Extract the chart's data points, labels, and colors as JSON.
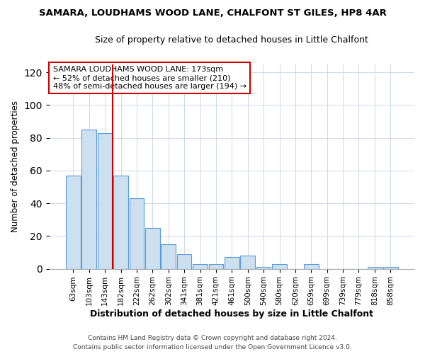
{
  "title": "SAMARA, LOUDHAMS WOOD LANE, CHALFONT ST GILES, HP8 4AR",
  "subtitle": "Size of property relative to detached houses in Little Chalfont",
  "xlabel": "Distribution of detached houses by size in Little Chalfont",
  "ylabel": "Number of detached properties",
  "footer": "Contains HM Land Registry data © Crown copyright and database right 2024.\nContains public sector information licensed under the Open Government Licence v3.0.",
  "bar_labels": [
    "63sqm",
    "103sqm",
    "143sqm",
    "182sqm",
    "222sqm",
    "262sqm",
    "302sqm",
    "341sqm",
    "381sqm",
    "421sqm",
    "461sqm",
    "500sqm",
    "540sqm",
    "580sqm",
    "620sqm",
    "659sqm",
    "699sqm",
    "739sqm",
    "779sqm",
    "818sqm",
    "858sqm"
  ],
  "bar_values": [
    57,
    85,
    83,
    57,
    43,
    25,
    15,
    9,
    3,
    3,
    7,
    8,
    1,
    3,
    0,
    3,
    0,
    0,
    0,
    1,
    1
  ],
  "bar_color": "#cce0f0",
  "bar_edge_color": "#5b9bd5",
  "vline_color": "#cc0000",
  "vline_position": 2.5,
  "ylim": [
    0,
    125
  ],
  "yticks": [
    0,
    20,
    40,
    60,
    80,
    100,
    120
  ],
  "annotation_box_text": "SAMARA LOUDHAMS WOOD LANE: 173sqm\n← 52% of detached houses are smaller (210)\n48% of semi-detached houses are larger (194) →",
  "figsize": [
    6.0,
    5.0
  ],
  "dpi": 100
}
